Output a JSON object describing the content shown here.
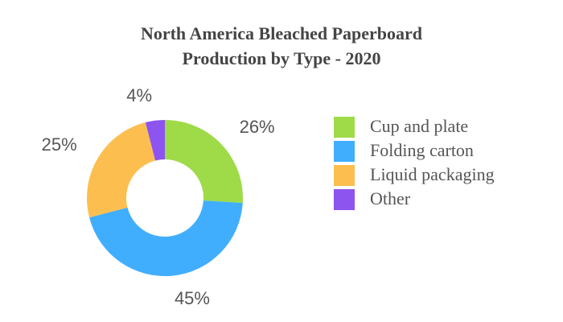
{
  "chart_data": {
    "type": "donut",
    "title": [
      "North America Bleached Paperboard",
      "Production by Type - 2020"
    ],
    "series": [
      {
        "name": "Cup and plate",
        "color": "#9fdb48",
        "value": 26,
        "value_label": "26%"
      },
      {
        "name": "Folding carton",
        "color": "#41aefd",
        "value": 45,
        "value_label": "45%"
      },
      {
        "name": "Liquid packaging",
        "color": "#fcbf4f",
        "value": 25,
        "value_label": "25%"
      },
      {
        "name": "Other",
        "color": "#8d54f0",
        "value": 4,
        "value_label": "4%"
      }
    ],
    "legend": "right"
  }
}
